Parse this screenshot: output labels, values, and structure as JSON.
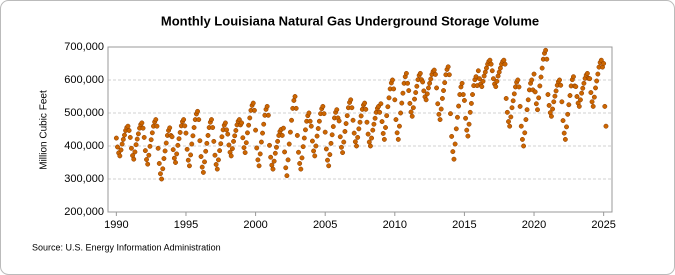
{
  "chart_data": {
    "type": "scatter",
    "title": "Monthly Louisiana Natural Gas Underground Storage Volume",
    "y_label": "Million Cubic Feet",
    "source": "Source: U.S. Energy Information Administration",
    "color": "#cc6600",
    "grid": true,
    "xlim": [
      1989.4,
      2025.6
    ],
    "xticks": [
      1990,
      1995,
      2000,
      2005,
      2010,
      2015,
      2020,
      2025
    ],
    "ylim": [
      200000,
      700000
    ],
    "yticks": [
      {
        "value": 200000,
        "label": "200,000"
      },
      {
        "value": 300000,
        "label": "300,000"
      },
      {
        "value": 400000,
        "label": "400,000"
      },
      {
        "value": 500000,
        "label": "500,000"
      },
      {
        "value": 600000,
        "label": "600,000"
      },
      {
        "value": 700000,
        "label": "700,000"
      }
    ],
    "x": [
      1990,
      1990.083,
      1990.167,
      1990.25,
      1990.333,
      1990.417,
      1990.5,
      1990.583,
      1990.667,
      1990.75,
      1990.833,
      1990.917,
      1991,
      1991.083,
      1991.167,
      1991.25,
      1991.333,
      1991.417,
      1991.5,
      1991.583,
      1991.667,
      1991.75,
      1991.833,
      1991.917,
      1992,
      1992.083,
      1992.167,
      1992.25,
      1992.333,
      1992.417,
      1992.5,
      1992.583,
      1992.667,
      1992.75,
      1992.833,
      1992.917,
      1993,
      1993.083,
      1993.167,
      1993.25,
      1993.333,
      1993.417,
      1993.5,
      1993.583,
      1993.667,
      1993.75,
      1993.833,
      1993.917,
      1994,
      1994.083,
      1994.167,
      1994.25,
      1994.333,
      1994.417,
      1994.5,
      1994.583,
      1994.667,
      1994.75,
      1994.833,
      1994.917,
      1995,
      1995.083,
      1995.167,
      1995.25,
      1995.333,
      1995.417,
      1995.5,
      1995.583,
      1995.667,
      1995.75,
      1995.833,
      1995.917,
      1996,
      1996.083,
      1996.167,
      1996.25,
      1996.333,
      1996.417,
      1996.5,
      1996.583,
      1996.667,
      1996.75,
      1996.833,
      1996.917,
      1997,
      1997.083,
      1997.167,
      1997.25,
      1997.333,
      1997.417,
      1997.5,
      1997.583,
      1997.667,
      1997.75,
      1997.833,
      1997.917,
      1998,
      1998.083,
      1998.167,
      1998.25,
      1998.333,
      1998.417,
      1998.5,
      1998.583,
      1998.667,
      1998.75,
      1998.833,
      1998.917,
      1999,
      1999.083,
      1999.167,
      1999.25,
      1999.333,
      1999.417,
      1999.5,
      1999.583,
      1999.667,
      1999.75,
      1999.833,
      1999.917,
      2000,
      2000.083,
      2000.167,
      2000.25,
      2000.333,
      2000.417,
      2000.5,
      2000.583,
      2000.667,
      2000.75,
      2000.833,
      2000.917,
      2001,
      2001.083,
      2001.167,
      2001.25,
      2001.333,
      2001.417,
      2001.5,
      2001.583,
      2001.667,
      2001.75,
      2001.833,
      2001.917,
      2002,
      2002.083,
      2002.167,
      2002.25,
      2002.333,
      2002.417,
      2002.5,
      2002.583,
      2002.667,
      2002.75,
      2002.833,
      2002.917,
      2003,
      2003.083,
      2003.167,
      2003.25,
      2003.333,
      2003.417,
      2003.5,
      2003.583,
      2003.667,
      2003.75,
      2003.833,
      2003.917,
      2004,
      2004.083,
      2004.167,
      2004.25,
      2004.333,
      2004.417,
      2004.5,
      2004.583,
      2004.667,
      2004.75,
      2004.833,
      2004.917,
      2005,
      2005.083,
      2005.167,
      2005.25,
      2005.333,
      2005.417,
      2005.5,
      2005.583,
      2005.667,
      2005.75,
      2005.833,
      2005.917,
      2006,
      2006.083,
      2006.167,
      2006.25,
      2006.333,
      2006.417,
      2006.5,
      2006.583,
      2006.667,
      2006.75,
      2006.833,
      2006.917,
      2007,
      2007.083,
      2007.167,
      2007.25,
      2007.333,
      2007.417,
      2007.5,
      2007.583,
      2007.667,
      2007.75,
      2007.833,
      2007.917,
      2008,
      2008.083,
      2008.167,
      2008.25,
      2008.333,
      2008.417,
      2008.5,
      2008.583,
      2008.667,
      2008.75,
      2008.833,
      2008.917,
      2009,
      2009.083,
      2009.167,
      2009.25,
      2009.333,
      2009.417,
      2009.5,
      2009.583,
      2009.667,
      2009.75,
      2009.833,
      2009.917,
      2010,
      2010.083,
      2010.167,
      2010.25,
      2010.333,
      2010.417,
      2010.5,
      2010.583,
      2010.667,
      2010.75,
      2010.833,
      2010.917,
      2011,
      2011.083,
      2011.167,
      2011.25,
      2011.333,
      2011.417,
      2011.5,
      2011.583,
      2011.667,
      2011.75,
      2011.833,
      2011.917,
      2012,
      2012.083,
      2012.167,
      2012.25,
      2012.333,
      2012.417,
      2012.5,
      2012.583,
      2012.667,
      2012.75,
      2012.833,
      2012.917,
      2013,
      2013.083,
      2013.167,
      2013.25,
      2013.333,
      2013.417,
      2013.5,
      2013.583,
      2013.667,
      2013.75,
      2013.833,
      2013.917,
      2014,
      2014.083,
      2014.167,
      2014.25,
      2014.333,
      2014.417,
      2014.5,
      2014.583,
      2014.667,
      2014.75,
      2014.833,
      2014.917,
      2015,
      2015.083,
      2015.167,
      2015.25,
      2015.333,
      2015.417,
      2015.5,
      2015.583,
      2015.667,
      2015.75,
      2015.833,
      2015.917,
      2016,
      2016.083,
      2016.167,
      2016.25,
      2016.333,
      2016.417,
      2016.5,
      2016.583,
      2016.667,
      2016.75,
      2016.833,
      2016.917,
      2017,
      2017.083,
      2017.167,
      2017.25,
      2017.333,
      2017.417,
      2017.5,
      2017.583,
      2017.667,
      2017.75,
      2017.833,
      2017.917,
      2018,
      2018.083,
      2018.167,
      2018.25,
      2018.333,
      2018.417,
      2018.5,
      2018.583,
      2018.667,
      2018.75,
      2018.833,
      2018.917,
      2019,
      2019.083,
      2019.167,
      2019.25,
      2019.333,
      2019.417,
      2019.5,
      2019.583,
      2019.667,
      2019.75,
      2019.833,
      2019.917,
      2020,
      2020.083,
      2020.167,
      2020.25,
      2020.333,
      2020.417,
      2020.5,
      2020.583,
      2020.667,
      2020.75,
      2020.833,
      2020.917,
      2021,
      2021.083,
      2021.167,
      2021.25,
      2021.333,
      2021.417,
      2021.5,
      2021.583,
      2021.667,
      2021.75,
      2021.833,
      2021.917,
      2022,
      2022.083,
      2022.167,
      2022.25,
      2022.333,
      2022.417,
      2022.5,
      2022.583,
      2022.667,
      2022.75,
      2022.833,
      2022.917,
      2023,
      2023.083,
      2023.167,
      2023.25,
      2023.333,
      2023.417,
      2023.5,
      2023.583,
      2023.667,
      2023.75,
      2023.833,
      2023.917,
      2024,
      2024.083,
      2024.167,
      2024.25,
      2024.333,
      2024.417,
      2024.5,
      2024.583,
      2024.667,
      2024.75,
      2024.833,
      2024.917,
      2025,
      2025.083,
      2025.167
    ],
    "values": [
      424000,
      397000,
      379000,
      370000,
      388000,
      406000,
      420000,
      433000,
      447000,
      456000,
      460000,
      447000,
      426000,
      393000,
      371000,
      360000,
      382000,
      404000,
      421000,
      437000,
      454000,
      465000,
      470000,
      454000,
      426000,
      386000,
      359000,
      345000,
      372000,
      399000,
      419000,
      440000,
      460000,
      473000,
      480000,
      460000,
      393000,
      347000,
      316000,
      300000,
      331000,
      362000,
      385000,
      409000,
      432000,
      447000,
      455000,
      432000,
      428000,
      389000,
      363000,
      350000,
      376000,
      402000,
      422000,
      441000,
      461000,
      474000,
      480000,
      461000,
      439000,
      390000,
      357000,
      340000,
      373000,
      406000,
      431000,
      456000,
      480000,
      497000,
      505000,
      480000,
      416000,
      368000,
      336000,
      320000,
      352000,
      384000,
      408000,
      432000,
      456000,
      472000,
      480000,
      456000,
      414000,
      372000,
      344000,
      330000,
      358000,
      386000,
      407000,
      428000,
      449000,
      463000,
      470000,
      449000,
      436000,
      403000,
      381000,
      370000,
      392000,
      414000,
      431000,
      447000,
      464000,
      475000,
      480000,
      464000,
      470000,
      425000,
      395000,
      380000,
      410000,
      440000,
      463000,
      485000,
      508000,
      523000,
      530000,
      508000,
      448000,
      394000,
      358000,
      340000,
      376000,
      412000,
      439000,
      466000,
      493000,
      511000,
      520000,
      493000,
      402000,
      366000,
      342000,
      330000,
      354000,
      378000,
      396000,
      414000,
      432000,
      444000,
      450000,
      432000,
      454000,
      382000,
      334000,
      310000,
      358000,
      406000,
      442000,
      478000,
      514000,
      538000,
      550000,
      514000,
      432000,
      381000,
      347000,
      330000,
      364000,
      398000,
      424000,
      449000,
      475000,
      492000,
      500000,
      475000,
      460000,
      415000,
      385000,
      370000,
      400000,
      430000,
      453000,
      475000,
      498000,
      513000,
      520000,
      498000,
      442000,
      391000,
      357000,
      340000,
      374000,
      408000,
      434000,
      459000,
      485000,
      502000,
      510000,
      485000,
      476000,
      428000,
      396000,
      380000,
      412000,
      444000,
      468000,
      492000,
      516000,
      532000,
      540000,
      516000,
      478000,
      439000,
      413000,
      400000,
      426000,
      452000,
      472000,
      491000,
      511000,
      524000,
      530000,
      511000,
      472000,
      436000,
      412000,
      400000,
      424000,
      448000,
      466000,
      484000,
      502000,
      514000,
      520000,
      502000,
      528000,
      474000,
      438000,
      420000,
      456000,
      492000,
      519000,
      546000,
      573000,
      591000,
      600000,
      573000,
      540000,
      480000,
      440000,
      420000,
      460000,
      500000,
      530000,
      560000,
      590000,
      610000,
      620000,
      590000,
      568000,
      529000,
      503000,
      490000,
      516000,
      542000,
      562000,
      581000,
      601000,
      614000,
      620000,
      601000,
      594000,
      567000,
      549000,
      540000,
      558000,
      576000,
      590000,
      603000,
      617000,
      626000,
      630000,
      617000,
      576000,
      528000,
      496000,
      480000,
      512000,
      544000,
      568000,
      592000,
      616000,
      632000,
      640000,
      616000,
      498000,
      429000,
      383000,
      360000,
      406000,
      452000,
      487000,
      521000,
      556000,
      579000,
      590000,
      556000,
      538000,
      484000,
      448000,
      430000,
      466000,
      502000,
      529000,
      556000,
      583000,
      601000,
      610000,
      583000,
      628000,
      604000,
      588000,
      580000,
      596000,
      612000,
      624000,
      636000,
      648000,
      656000,
      660000,
      648000,
      628000,
      604000,
      588000,
      580000,
      596000,
      612000,
      624000,
      636000,
      648000,
      656000,
      660000,
      648000,
      544000,
      502000,
      474000,
      460000,
      488000,
      516000,
      537000,
      558000,
      579000,
      593000,
      600000,
      579000,
      520000,
      460000,
      420000,
      400000,
      440000,
      480000,
      510000,
      540000,
      570000,
      590000,
      600000,
      570000,
      618000,
      564000,
      528000,
      510000,
      546000,
      582000,
      609000,
      636000,
      663000,
      681000,
      690000,
      663000,
      556000,
      523000,
      501000,
      490000,
      512000,
      534000,
      551000,
      567000,
      584000,
      595000,
      600000,
      584000,
      534000,
      477000,
      439000,
      420000,
      458000,
      496000,
      525000,
      553000,
      582000,
      601000,
      610000,
      582000,
      580000,
      550000,
      530000,
      520000,
      540000,
      560000,
      575000,
      590000,
      605000,
      615000,
      620000,
      605000,
      604000,
      562000,
      534000,
      520000,
      548000,
      576000,
      597000,
      618000,
      639000,
      653000,
      660000,
      639000,
      650000,
      520000,
      460000
    ]
  }
}
